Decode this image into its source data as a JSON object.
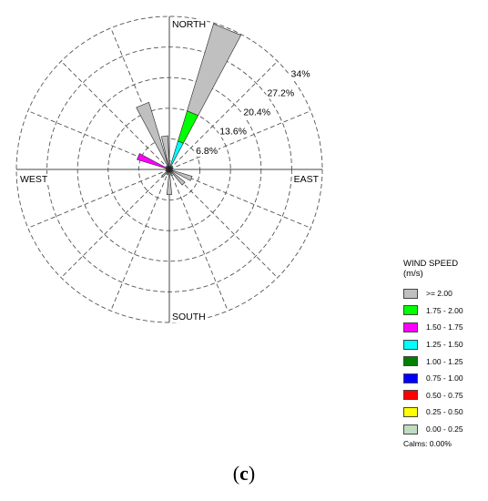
{
  "chart_data": {
    "type": "wind-rose",
    "directions": [
      "NORTH",
      "EAST",
      "SOUTH",
      "WEST"
    ],
    "rings": [
      "6.8%",
      "13.6%",
      "20.4%",
      "27.2%",
      "34%"
    ],
    "ring_max_percent": 34,
    "legend": {
      "title": "WIND SPEED",
      "units": "(m/s)",
      "bins": [
        {
          "label": ">= 2.00",
          "color": "#c0c0c0"
        },
        {
          "label": "1.75 - 2.00",
          "color": "#00ff00"
        },
        {
          "label": "1.50 - 1.75",
          "color": "#ff00ff"
        },
        {
          "label": "1.25 - 1.50",
          "color": "#00ffff"
        },
        {
          "label": "1.00 - 1.25",
          "color": "#008000"
        },
        {
          "label": "0.75 - 1.00",
          "color": "#0000ff"
        },
        {
          "label": "0.50 - 0.75",
          "color": "#ff0000"
        },
        {
          "label": "0.25 - 0.50",
          "color": "#ffff00"
        },
        {
          "label": "0.00 - 0.25",
          "color": "#c0dcc0"
        }
      ],
      "calms": "Calms: 0.00%"
    },
    "sectors_deg_from_north": [
      0,
      22.5,
      45,
      67.5,
      90,
      112.5,
      135,
      157.5,
      180,
      202.5,
      225,
      247.5,
      270,
      292.5,
      315,
      337.5
    ],
    "petals": [
      {
        "direction_deg": 0,
        "segments": [
          {
            "bin": ">= 2.00",
            "percent": 2.0
          }
        ]
      },
      {
        "direction_deg": 22.5,
        "segments": [
          {
            "bin": "1.25 - 1.50",
            "percent": 6.6
          },
          {
            "bin": "1.75 - 2.00",
            "percent": 7.0
          },
          {
            "bin": ">= 2.00",
            "percent": 20.2
          }
        ]
      },
      {
        "direction_deg": 45,
        "segments": [
          {
            "bin": ">= 2.00",
            "percent": 1.0
          }
        ]
      },
      {
        "direction_deg": 67.5,
        "segments": [
          {
            "bin": ">= 2.00",
            "percent": 0.8
          }
        ]
      },
      {
        "direction_deg": 90,
        "segments": [
          {
            "bin": ">= 2.00",
            "percent": 0.8
          }
        ]
      },
      {
        "direction_deg": 112.5,
        "segments": [
          {
            "bin": ">= 2.00",
            "percent": 5.3
          }
        ]
      },
      {
        "direction_deg": 135,
        "segments": [
          {
            "bin": ">= 2.00",
            "percent": 4.5
          }
        ]
      },
      {
        "direction_deg": 157.5,
        "segments": [
          {
            "bin": ">= 2.00",
            "percent": 1.5
          }
        ]
      },
      {
        "direction_deg": 180,
        "segments": [
          {
            "bin": ">= 2.00",
            "percent": 5.6
          }
        ]
      },
      {
        "direction_deg": 202.5,
        "segments": [
          {
            "bin": ">= 2.00",
            "percent": 1.3
          }
        ]
      },
      {
        "direction_deg": 225,
        "segments": [
          {
            "bin": ">= 2.00",
            "percent": 2.2
          }
        ]
      },
      {
        "direction_deg": 247.5,
        "segments": [
          {
            "bin": ">= 2.00",
            "percent": 0.8
          }
        ]
      },
      {
        "direction_deg": 270,
        "segments": [
          {
            "bin": ">= 2.00",
            "percent": 0.8
          }
        ]
      },
      {
        "direction_deg": 292.5,
        "segments": [
          {
            "bin": "1.50 - 1.75",
            "percent": 7.5
          }
        ]
      },
      {
        "direction_deg": 315,
        "segments": [
          {
            "bin": ">= 2.00",
            "percent": 1.0
          }
        ]
      },
      {
        "direction_deg": 337.5,
        "segments": [
          {
            "bin": ">= 2.00",
            "percent": 15.6
          }
        ]
      },
      {
        "direction_deg": 352,
        "segments": [
          {
            "bin": ">= 2.00",
            "percent": 7.5
          }
        ]
      }
    ]
  },
  "caption": {
    "open": "(",
    "letter": "c",
    "close": ")"
  }
}
